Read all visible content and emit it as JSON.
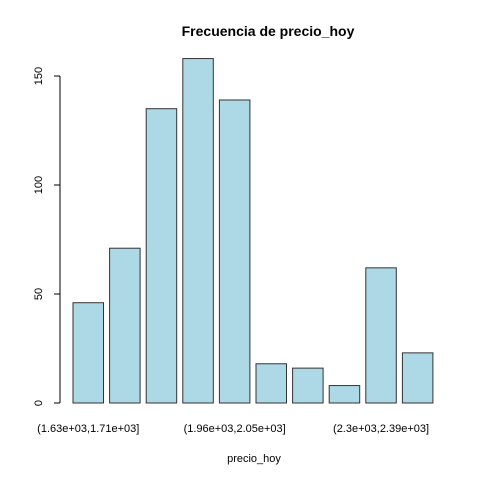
{
  "chart_data": {
    "type": "bar",
    "title": "Frecuencia de precio_hoy",
    "xlabel": "precio_hoy",
    "ylabel": "",
    "ylim": [
      0,
      165
    ],
    "yticks": [
      0,
      50,
      100,
      150
    ],
    "values": [
      46,
      71,
      135,
      158,
      139,
      18,
      16,
      8,
      62,
      23
    ],
    "x_tick_labels": [
      {
        "bar_index": 0,
        "label": "(1.63e+03,1.71e+03]"
      },
      {
        "bar_index": 4,
        "label": "(1.96e+03,2.05e+03]"
      },
      {
        "bar_index": 8,
        "label": "(2.3e+03,2.39e+03]"
      }
    ],
    "bar_color": "#add8e6",
    "bar_border_color": "#333333",
    "grid": false,
    "legend": "none"
  }
}
